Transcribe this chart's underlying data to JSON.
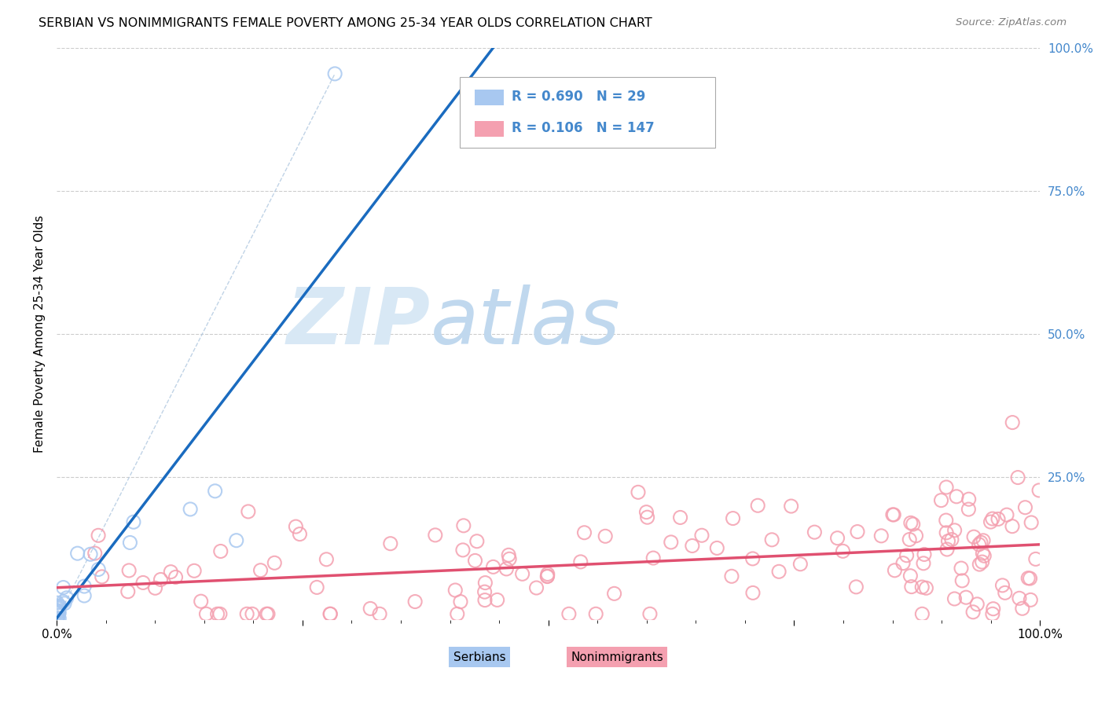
{
  "title": "SERBIAN VS NONIMMIGRANTS FEMALE POVERTY AMONG 25-34 YEAR OLDS CORRELATION CHART",
  "source": "Source: ZipAtlas.com",
  "ylabel": "Female Poverty Among 25-34 Year Olds",
  "r_serbian": 0.69,
  "n_serbian": 29,
  "r_nonimmigrant": 0.106,
  "n_nonimmigrant": 147,
  "legend_labels": [
    "Serbians",
    "Nonimmigrants"
  ],
  "color_serbian": "#a8c8f0",
  "color_nonimmigrant": "#f4a0b0",
  "color_line_serbian": "#1a6bbf",
  "color_line_nonimmigrant": "#e05070",
  "color_refline": "#b0c8e0",
  "watermark_zip_color": "#d8e8f5",
  "watermark_atlas_color": "#c0d8ee",
  "right_tick_color": "#4488cc",
  "grid_color": "#cccccc"
}
